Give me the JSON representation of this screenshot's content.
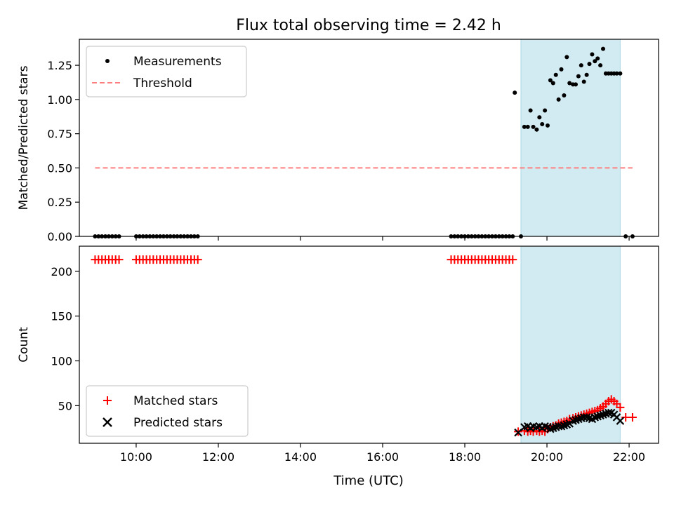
{
  "figure": {
    "title": "Flux total observing time = 2.42 h",
    "xlabel": "Time (UTC)"
  },
  "colors": {
    "highlight": "#add8e6",
    "threshold": "#ff7f7f",
    "measurements": "#000000",
    "matched": "#ff0000",
    "predicted": "#000000"
  },
  "chart_data": [
    {
      "type": "scatter",
      "panel": "top",
      "title": "Flux total observing time = 2.42 h",
      "xlabel": "",
      "ylabel": "Matched/Predicted stars",
      "xlim": [
        "08:37",
        "22:43"
      ],
      "ylim": [
        0,
        1.44
      ],
      "x_ticks": [
        "10:00",
        "12:00",
        "14:00",
        "16:00",
        "18:00",
        "20:00",
        "22:00"
      ],
      "y_ticks": [
        0.0,
        0.25,
        0.5,
        0.75,
        1.0,
        1.25
      ],
      "y_tick_labels": [
        "0.00",
        "0.25",
        "0.50",
        "0.75",
        "1.00",
        "1.25"
      ],
      "highlight_span": [
        "19:22",
        "21:47"
      ],
      "legend_position": "upper left",
      "series": [
        {
          "name": "Measurements",
          "kind": "dots",
          "x": [
            "09:00",
            "09:05",
            "09:10",
            "09:15",
            "09:20",
            "09:25",
            "09:30",
            "09:35",
            "10:00",
            "10:05",
            "10:10",
            "10:15",
            "10:20",
            "10:25",
            "10:30",
            "10:35",
            "10:40",
            "10:45",
            "10:50",
            "10:55",
            "11:00",
            "11:05",
            "11:10",
            "11:15",
            "11:20",
            "11:25",
            "11:30",
            "17:40",
            "17:45",
            "17:50",
            "17:55",
            "18:00",
            "18:05",
            "18:10",
            "18:15",
            "18:20",
            "18:25",
            "18:30",
            "18:35",
            "18:40",
            "18:45",
            "18:50",
            "18:55",
            "19:00",
            "19:05",
            "19:10",
            "19:13",
            "19:22",
            "19:27",
            "19:32",
            "19:36",
            "19:40",
            "19:45",
            "19:49",
            "19:53",
            "19:57",
            "20:01",
            "20:05",
            "20:09",
            "20:13",
            "20:17",
            "20:21",
            "20:25",
            "20:29",
            "20:33",
            "20:38",
            "20:42",
            "20:46",
            "20:50",
            "20:54",
            "20:58",
            "21:02",
            "21:06",
            "21:10",
            "21:14",
            "21:18",
            "21:22",
            "21:26",
            "21:30",
            "21:34",
            "21:38",
            "21:42",
            "21:47",
            "21:55",
            "22:05"
          ],
          "y": [
            0,
            0,
            0,
            0,
            0,
            0,
            0,
            0,
            0,
            0,
            0,
            0,
            0,
            0,
            0,
            0,
            0,
            0,
            0,
            0,
            0,
            0,
            0,
            0,
            0,
            0,
            0,
            0,
            0,
            0,
            0,
            0,
            0,
            0,
            0,
            0,
            0,
            0,
            0,
            0,
            0,
            0,
            0,
            0,
            0,
            0,
            1.05,
            0.0,
            0.8,
            0.8,
            0.92,
            0.8,
            0.78,
            0.87,
            0.82,
            0.92,
            0.81,
            1.14,
            1.12,
            1.18,
            1.0,
            1.22,
            1.03,
            1.31,
            1.12,
            1.11,
            1.11,
            1.17,
            1.25,
            1.13,
            1.18,
            1.26,
            1.33,
            1.28,
            1.3,
            1.25,
            1.37,
            1.19,
            1.19,
            1.19,
            1.19,
            1.19,
            1.19,
            0.0,
            0.0
          ]
        },
        {
          "name": "Threshold",
          "kind": "dashed-line",
          "x": [
            "09:00",
            "22:05"
          ],
          "y": [
            0.5,
            0.5
          ]
        }
      ]
    },
    {
      "type": "scatter",
      "panel": "bottom",
      "xlabel": "Time (UTC)",
      "ylabel": "Count",
      "xlim": [
        "08:37",
        "22:43"
      ],
      "ylim": [
        8,
        228
      ],
      "x_ticks": [
        "10:00",
        "12:00",
        "14:00",
        "16:00",
        "18:00",
        "20:00",
        "22:00"
      ],
      "y_ticks": [
        50,
        100,
        150,
        200
      ],
      "highlight_span": [
        "19:22",
        "21:47"
      ],
      "legend_position": "lower left",
      "series": [
        {
          "name": "Matched stars",
          "kind": "plus",
          "x": [
            "09:00",
            "09:05",
            "09:10",
            "09:15",
            "09:20",
            "09:25",
            "09:30",
            "09:35",
            "10:00",
            "10:05",
            "10:10",
            "10:15",
            "10:20",
            "10:25",
            "10:30",
            "10:35",
            "10:40",
            "10:45",
            "10:50",
            "10:55",
            "11:00",
            "11:05",
            "11:10",
            "11:15",
            "11:20",
            "11:25",
            "11:30",
            "17:40",
            "17:45",
            "17:50",
            "17:55",
            "18:00",
            "18:05",
            "18:10",
            "18:15",
            "18:20",
            "18:25",
            "18:30",
            "18:35",
            "18:40",
            "18:45",
            "18:50",
            "18:55",
            "19:00",
            "19:05",
            "19:10",
            "19:18",
            "19:27",
            "19:32",
            "19:36",
            "19:40",
            "19:45",
            "19:49",
            "19:53",
            "19:57",
            "20:01",
            "20:05",
            "20:09",
            "20:13",
            "20:17",
            "20:21",
            "20:25",
            "20:29",
            "20:33",
            "20:38",
            "20:42",
            "20:46",
            "20:50",
            "20:54",
            "20:58",
            "21:02",
            "21:06",
            "21:10",
            "21:14",
            "21:18",
            "21:22",
            "21:26",
            "21:30",
            "21:34",
            "21:38",
            "21:42",
            "21:47",
            "21:55",
            "22:05"
          ],
          "y": [
            213,
            213,
            213,
            213,
            213,
            213,
            213,
            213,
            213,
            213,
            213,
            213,
            213,
            213,
            213,
            213,
            213,
            213,
            213,
            213,
            213,
            213,
            213,
            213,
            213,
            213,
            213,
            213,
            213,
            213,
            213,
            213,
            213,
            213,
            213,
            213,
            213,
            213,
            213,
            213,
            213,
            213,
            213,
            213,
            213,
            213,
            21,
            22,
            21,
            22,
            21,
            22,
            21,
            22,
            21,
            24,
            26,
            27,
            28,
            30,
            31,
            32,
            33,
            35,
            36,
            37,
            38,
            39,
            40,
            41,
            42,
            43,
            44,
            45,
            47,
            49,
            52,
            55,
            57,
            55,
            52,
            48,
            37,
            37
          ]
        },
        {
          "name": "Predicted stars",
          "kind": "x",
          "x": [
            "19:18",
            "19:27",
            "19:32",
            "19:36",
            "19:40",
            "19:45",
            "19:49",
            "19:53",
            "19:57",
            "20:01",
            "20:05",
            "20:09",
            "20:13",
            "20:17",
            "20:21",
            "20:25",
            "20:29",
            "20:33",
            "20:38",
            "20:42",
            "20:46",
            "20:50",
            "20:54",
            "20:58",
            "21:02",
            "21:06",
            "21:10",
            "21:14",
            "21:18",
            "21:22",
            "21:26",
            "21:30",
            "21:34",
            "21:38",
            "21:42",
            "21:47"
          ],
          "y": [
            20,
            26,
            27,
            25,
            27,
            26,
            27,
            25,
            27,
            26,
            24,
            25,
            26,
            27,
            27,
            28,
            29,
            30,
            33,
            34,
            35,
            36,
            37,
            37,
            36,
            35,
            37,
            38,
            39,
            40,
            41,
            42,
            42,
            40,
            37,
            33
          ]
        }
      ]
    }
  ]
}
